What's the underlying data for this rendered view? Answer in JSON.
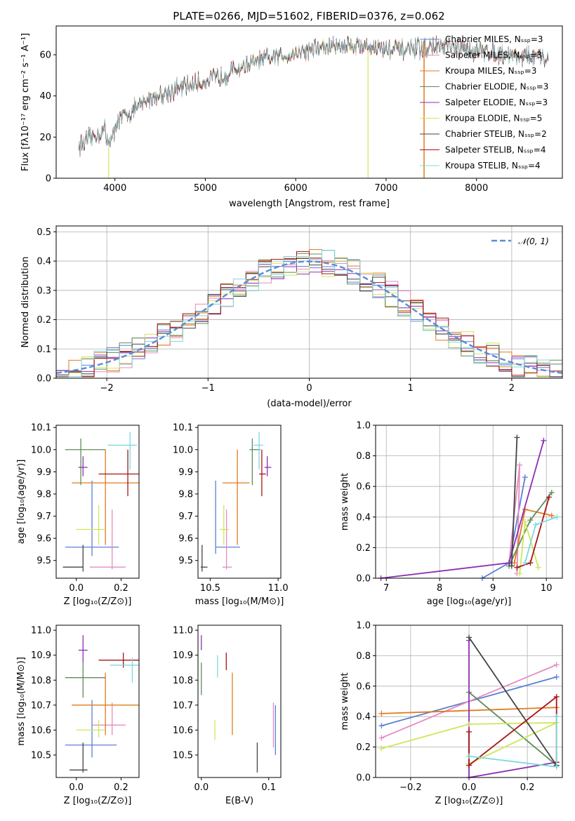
{
  "colors": [
    "#5b7fd6",
    "#e58bc0",
    "#e07b1f",
    "#5f8c5a",
    "#8e2fb0",
    "#cfe65a",
    "#444444",
    "#a81515",
    "#7fd8e0"
  ],
  "chart_data": [
    {
      "id": "spectrum",
      "type": "line",
      "title": "PLATE=0266, MJD=51602, FIBERID=0376, z=0.062",
      "xlabel": "wavelength [Angstrom, rest frame]",
      "ylabel": "Flux [fλ10⁻¹⁷ erg cm⁻² s⁻¹ A⁻¹]",
      "xlim": [
        3350,
        8950
      ],
      "ylim": [
        0,
        74
      ],
      "xticks": [
        "4000",
        "5000",
        "6000",
        "7000",
        "8000"
      ],
      "yticks": [
        "0",
        "20",
        "40",
        "60"
      ],
      "continuum": [
        [
          3600,
          16
        ],
        [
          3800,
          21
        ],
        [
          4000,
          27
        ],
        [
          4200,
          33
        ],
        [
          4400,
          39
        ],
        [
          4600,
          42
        ],
        [
          4800,
          45
        ],
        [
          5000,
          47
        ],
        [
          5200,
          50
        ],
        [
          5400,
          54
        ],
        [
          5600,
          57
        ],
        [
          5800,
          59
        ],
        [
          6000,
          61
        ],
        [
          6200,
          63
        ],
        [
          6400,
          64
        ],
        [
          6600,
          65
        ],
        [
          6800,
          64
        ],
        [
          7000,
          63
        ],
        [
          7200,
          62
        ],
        [
          7400,
          63
        ],
        [
          7600,
          64
        ],
        [
          7800,
          63
        ],
        [
          8000,
          62
        ],
        [
          8200,
          61
        ],
        [
          8400,
          60
        ],
        [
          8600,
          59
        ],
        [
          8800,
          58
        ]
      ],
      "legend": [
        "Chabrier MILES, Nₛₛₚ=3",
        "Salpeter MILES, Nₛₛₚ=3",
        "Kroupa MILES, Nₛₛₚ=3",
        "Chabrier ELODIE, Nₛₛₚ=3",
        "Salpeter ELODIE, Nₛₛₚ=3",
        "Kroupa ELODIE, Nₛₛₚ=5",
        "Chabrier STELIB, Nₛₛₚ=2",
        "Salpeter STELIB, Nₛₛₚ=4",
        "Kroupa STELIB, Nₛₛₚ=4"
      ],
      "legend_placement": "right"
    },
    {
      "id": "histogram",
      "type": "bar",
      "xlabel": "(data-model)/error",
      "ylabel": "Normed distribution",
      "xlim": [
        -2.5,
        2.5
      ],
      "ylim": [
        0,
        0.52
      ],
      "xticks": [
        "−2",
        "−1",
        "0",
        "1",
        "2"
      ],
      "yticks": [
        "0.0",
        "0.1",
        "0.2",
        "0.3",
        "0.4",
        "0.5"
      ],
      "grid": true,
      "legend": [
        "𝒩(0, 1)"
      ],
      "legend_placement": "top-right",
      "gaussian": {
        "mean": 0,
        "sigma": 1
      }
    },
    {
      "id": "age_vs_Z",
      "type": "scatter",
      "xlabel": "Z [log₁₀(Z/Z⊙)]",
      "ylabel": "age  [log₁₀(age/yr)]",
      "xlim": [
        -0.09,
        0.28
      ],
      "ylim": [
        9.42,
        10.11
      ],
      "xticks": [
        {
          "v": 0,
          "t": "0.0"
        },
        {
          "v": 0.2,
          "t": "0.2"
        }
      ],
      "yticks": [
        {
          "v": 9.5,
          "t": "9.5"
        },
        {
          "v": 9.6,
          "t": "9.6"
        },
        {
          "v": 9.7,
          "t": "9.7"
        },
        {
          "v": 9.8,
          "t": "9.8"
        },
        {
          "v": 9.9,
          "t": "9.9"
        },
        {
          "v": 10.0,
          "t": "10.0"
        },
        {
          "v": 10.1,
          "t": "10.1"
        }
      ],
      "points": [
        {
          "x": 0.07,
          "y": 9.56,
          "xe": [
            -0.05,
            0.19
          ],
          "ye": [
            9.52,
            9.86
          ]
        },
        {
          "x": 0.16,
          "y": 9.47,
          "xe": [
            0.06,
            0.22
          ],
          "ye": [
            9.46,
            9.73
          ]
        },
        {
          "x": 0.13,
          "y": 9.85,
          "xe": [
            -0.02,
            0.28
          ],
          "ye": [
            9.57,
            10.0
          ]
        },
        {
          "x": 0.02,
          "y": 10.0,
          "xe": [
            -0.05,
            0.13
          ],
          "ye": [
            9.84,
            10.05
          ]
        },
        {
          "x": 0.03,
          "y": 9.92,
          "xe": [
            0.01,
            0.05
          ],
          "ye": [
            9.88,
            9.97
          ]
        },
        {
          "x": 0.1,
          "y": 9.64,
          "xe": [
            0.0,
            0.13
          ],
          "ye": [
            9.57,
            9.75
          ]
        },
        {
          "x": 0.03,
          "y": 9.47,
          "xe": [
            -0.06,
            0.03
          ],
          "ye": [
            9.45,
            9.57
          ]
        },
        {
          "x": 0.23,
          "y": 9.89,
          "xe": [
            0.1,
            0.28
          ],
          "ye": [
            9.79,
            10.0
          ]
        },
        {
          "x": 0.24,
          "y": 10.02,
          "xe": [
            0.14,
            0.27
          ],
          "ye": [
            9.91,
            10.08
          ]
        }
      ]
    },
    {
      "id": "age_vs_mass",
      "type": "scatter",
      "xlabel": "mass [log₁₀(M/M⊙)]",
      "ylabel": "",
      "xlim": [
        10.41,
        11.02
      ],
      "ylim": [
        9.42,
        10.11
      ],
      "xticks": [
        {
          "v": 10.5,
          "t": "10.5"
        },
        {
          "v": 11.0,
          "t": "11.0"
        }
      ],
      "yticks": [
        {
          "v": 9.5,
          "t": "9.5"
        },
        {
          "v": 9.6,
          "t": "9.6"
        },
        {
          "v": 9.7,
          "t": "9.7"
        },
        {
          "v": 9.8,
          "t": "9.8"
        },
        {
          "v": 9.9,
          "t": "9.9"
        },
        {
          "v": 10.0,
          "t": "10.0"
        },
        {
          "v": 10.1,
          "t": "10.1"
        }
      ],
      "points": [
        {
          "x": 10.54,
          "y": 9.56,
          "xe": [
            10.54,
            10.72
          ],
          "ye": [
            9.53,
            9.86
          ]
        },
        {
          "x": 10.62,
          "y": 9.47,
          "xe": [
            10.59,
            10.66
          ],
          "ye": [
            9.46,
            9.73
          ]
        },
        {
          "x": 10.7,
          "y": 9.85,
          "xe": [
            10.59,
            10.79
          ],
          "ye": [
            9.57,
            10.0
          ]
        },
        {
          "x": 10.81,
          "y": 10.0,
          "xe": [
            10.79,
            10.87
          ],
          "ye": [
            9.84,
            10.05
          ]
        },
        {
          "x": 10.92,
          "y": 9.92,
          "xe": [
            10.9,
            10.95
          ],
          "ye": [
            9.88,
            9.97
          ]
        },
        {
          "x": 10.6,
          "y": 9.64,
          "xe": [
            10.57,
            10.64
          ],
          "ye": [
            9.57,
            9.75
          ]
        },
        {
          "x": 10.44,
          "y": 9.47,
          "xe": [
            10.43,
            10.48
          ],
          "ye": [
            9.45,
            9.57
          ]
        },
        {
          "x": 10.88,
          "y": 9.89,
          "xe": [
            10.86,
            10.91
          ],
          "ye": [
            9.79,
            10.0
          ]
        },
        {
          "x": 10.86,
          "y": 10.02,
          "xe": [
            10.82,
            10.89
          ],
          "ye": [
            9.91,
            10.08
          ]
        }
      ]
    },
    {
      "id": "weight_vs_age",
      "type": "line",
      "xlabel": "age  [log₁₀(age/yr)]",
      "ylabel": "mass weight",
      "xlim": [
        6.8,
        10.3
      ],
      "ylim": [
        0,
        1
      ],
      "xticks": [
        {
          "v": 7,
          "t": "7"
        },
        {
          "v": 8,
          "t": "8"
        },
        {
          "v": 9,
          "t": "9"
        },
        {
          "v": 10,
          "t": "10"
        }
      ],
      "yticks": [
        {
          "v": 0,
          "t": "0.0"
        },
        {
          "v": 0.2,
          "t": "0.2"
        },
        {
          "v": 0.4,
          "t": "0.4"
        },
        {
          "v": 0.6,
          "t": "0.6"
        },
        {
          "v": 0.8,
          "t": "0.8"
        },
        {
          "v": 1.0,
          "t": "1.0"
        }
      ],
      "grid": true,
      "series": [
        {
          "points": [
            [
              8.8,
              0
            ],
            [
              9.3,
              0.1
            ],
            [
              9.6,
              0.66
            ]
          ]
        },
        {
          "points": [
            [
              9.3,
              0.1
            ],
            [
              9.5,
              0.74
            ],
            [
              9.45,
              0.03
            ]
          ]
        },
        {
          "points": [
            [
              9.4,
              0.1
            ],
            [
              9.6,
              0.45
            ],
            [
              10.1,
              0.41
            ]
          ]
        },
        {
          "points": [
            [
              9.3,
              0.08
            ],
            [
              9.7,
              0.38
            ],
            [
              10.1,
              0.56
            ]
          ]
        },
        {
          "points": [
            [
              6.9,
              0
            ],
            [
              9.3,
              0.1
            ],
            [
              9.95,
              0.9
            ]
          ]
        },
        {
          "points": [
            [
              9.5,
              0.03
            ],
            [
              9.6,
              0.37
            ],
            [
              9.85,
              0.07
            ]
          ]
        },
        {
          "points": [
            [
              9.35,
              0.08
            ],
            [
              9.45,
              0.92
            ]
          ]
        },
        {
          "points": [
            [
              9.45,
              0.07
            ],
            [
              9.7,
              0.1
            ],
            [
              10.05,
              0.53
            ]
          ]
        },
        {
          "points": [
            [
              9.6,
              0.1
            ],
            [
              9.8,
              0.35
            ],
            [
              10.2,
              0.4
            ]
          ]
        }
      ]
    },
    {
      "id": "mass_vs_Z",
      "type": "scatter",
      "xlabel": "Z [log₁₀(Z/Z⊙)]",
      "ylabel": "mass [log₁₀(M/M⊙)]",
      "xlim": [
        -0.09,
        0.28
      ],
      "ylim": [
        10.41,
        11.02
      ],
      "xticks": [
        {
          "v": 0,
          "t": "0.0"
        },
        {
          "v": 0.2,
          "t": "0.2"
        }
      ],
      "yticks": [
        {
          "v": 10.5,
          "t": "10.5"
        },
        {
          "v": 10.6,
          "t": "10.6"
        },
        {
          "v": 10.7,
          "t": "10.7"
        },
        {
          "v": 10.8,
          "t": "10.8"
        },
        {
          "v": 10.9,
          "t": "10.9"
        },
        {
          "v": 11.0,
          "t": "11.0"
        }
      ],
      "points": [
        {
          "x": 0.07,
          "y": 10.54,
          "xe": [
            -0.05,
            0.18
          ],
          "ye": [
            10.49,
            10.72
          ]
        },
        {
          "x": 0.16,
          "y": 10.62,
          "xe": [
            0.07,
            0.22
          ],
          "ye": [
            10.58,
            10.71
          ]
        },
        {
          "x": 0.13,
          "y": 10.7,
          "xe": [
            -0.02,
            0.28
          ],
          "ye": [
            10.58,
            10.83
          ]
        },
        {
          "x": 0.03,
          "y": 10.81,
          "xe": [
            -0.05,
            0.13
          ],
          "ye": [
            10.73,
            10.87
          ]
        },
        {
          "x": 0.03,
          "y": 10.92,
          "xe": [
            0.01,
            0.05
          ],
          "ye": [
            10.87,
            10.98
          ]
        },
        {
          "x": 0.1,
          "y": 10.6,
          "xe": [
            0.0,
            0.13
          ],
          "ye": [
            10.57,
            10.64
          ]
        },
        {
          "x": 0.03,
          "y": 10.44,
          "xe": [
            -0.03,
            0.05
          ],
          "ye": [
            10.43,
            10.55
          ]
        },
        {
          "x": 0.21,
          "y": 10.88,
          "xe": [
            0.1,
            0.28
          ],
          "ye": [
            10.85,
            10.91
          ]
        },
        {
          "x": 0.25,
          "y": 10.86,
          "xe": [
            0.15,
            0.28
          ],
          "ye": [
            10.79,
            10.89
          ]
        }
      ]
    },
    {
      "id": "mass_vs_EBV",
      "type": "scatter",
      "xlabel": "E(B-V)",
      "ylabel": "",
      "xlim": [
        -0.005,
        0.118
      ],
      "ylim": [
        10.41,
        11.02
      ],
      "xticks": [
        {
          "v": 0,
          "t": "0.0"
        },
        {
          "v": 0.1,
          "t": "0.1"
        }
      ],
      "yticks": [
        {
          "v": 10.5,
          "t": "10.5"
        },
        {
          "v": 10.6,
          "t": "10.6"
        },
        {
          "v": 10.7,
          "t": "10.7"
        },
        {
          "v": 10.8,
          "t": "10.8"
        },
        {
          "v": 10.9,
          "t": "10.9"
        },
        {
          "v": 11.0,
          "t": "11.0"
        }
      ],
      "points": [
        {
          "x": 0.11,
          "y": 10.6,
          "xe": [
            0.11,
            0.11
          ],
          "ye": [
            10.5,
            10.7
          ]
        },
        {
          "x": 0.107,
          "y": 10.62,
          "xe": [
            0.107,
            0.107
          ],
          "ye": [
            10.53,
            10.71
          ]
        },
        {
          "x": 0.046,
          "y": 10.7,
          "xe": [
            0.046,
            0.046
          ],
          "ye": [
            10.58,
            10.83
          ]
        },
        {
          "x": 0.0,
          "y": 10.8,
          "xe": [
            0.0,
            0.0
          ],
          "ye": [
            10.74,
            10.87
          ]
        },
        {
          "x": 0.0,
          "y": 10.95,
          "xe": [
            0.0,
            0.0
          ],
          "ye": [
            10.92,
            10.98
          ]
        },
        {
          "x": 0.02,
          "y": 10.6,
          "xe": [
            0.02,
            0.02
          ],
          "ye": [
            10.56,
            10.64
          ]
        },
        {
          "x": 0.083,
          "y": 10.5,
          "xe": [
            0.083,
            0.083
          ],
          "ye": [
            10.43,
            10.55
          ]
        },
        {
          "x": 0.037,
          "y": 10.88,
          "xe": [
            0.037,
            0.037
          ],
          "ye": [
            10.84,
            10.91
          ]
        },
        {
          "x": 0.024,
          "y": 10.86,
          "xe": [
            0.024,
            0.024
          ],
          "ye": [
            10.81,
            10.9
          ]
        }
      ]
    },
    {
      "id": "weight_vs_Z",
      "type": "line",
      "xlabel": "Z [log₁₀(Z/Z⊙)]",
      "ylabel": "mass weight",
      "xlim": [
        -0.32,
        0.32
      ],
      "ylim": [
        0,
        1
      ],
      "xticks": [
        {
          "v": -0.2,
          "t": "−0.2"
        },
        {
          "v": 0,
          "t": "0.0"
        },
        {
          "v": 0.2,
          "t": "0.2"
        }
      ],
      "yticks": [
        {
          "v": 0,
          "t": "0.0"
        },
        {
          "v": 0.2,
          "t": "0.2"
        },
        {
          "v": 0.4,
          "t": "0.4"
        },
        {
          "v": 0.6,
          "t": "0.6"
        },
        {
          "v": 0.8,
          "t": "0.8"
        },
        {
          "v": 1.0,
          "t": "1.0"
        }
      ],
      "grid": true,
      "series": [
        {
          "points": [
            [
              -0.3,
              0.34
            ],
            [
              0.3,
              0.66
            ]
          ]
        },
        {
          "points": [
            [
              -0.3,
              0.26
            ],
            [
              0.3,
              0.74
            ]
          ]
        },
        {
          "points": [
            [
              -0.3,
              0.42
            ],
            [
              0.3,
              0.46
            ]
          ]
        },
        {
          "points": [
            [
              0.0,
              0.56
            ],
            [
              0.3,
              0.08
            ]
          ]
        },
        {
          "points": [
            [
              0.0,
              0.9
            ],
            [
              0.0,
              0.0
            ],
            [
              0.3,
              0.1
            ]
          ]
        },
        {
          "points": [
            [
              -0.3,
              0.19
            ],
            [
              0.0,
              0.35
            ],
            [
              0.3,
              0.36
            ],
            [
              0.0,
              0.09
            ]
          ]
        },
        {
          "points": [
            [
              0.0,
              0.92
            ],
            [
              0.3,
              0.08
            ]
          ]
        },
        {
          "points": [
            [
              0.0,
              0.3
            ],
            [
              0.0,
              0.08
            ],
            [
              0.3,
              0.53
            ],
            [
              0.3,
              0.1
            ]
          ]
        },
        {
          "points": [
            [
              0.0,
              0.14
            ],
            [
              0.3,
              0.07
            ],
            [
              0.3,
              0.4
            ]
          ]
        }
      ]
    }
  ]
}
